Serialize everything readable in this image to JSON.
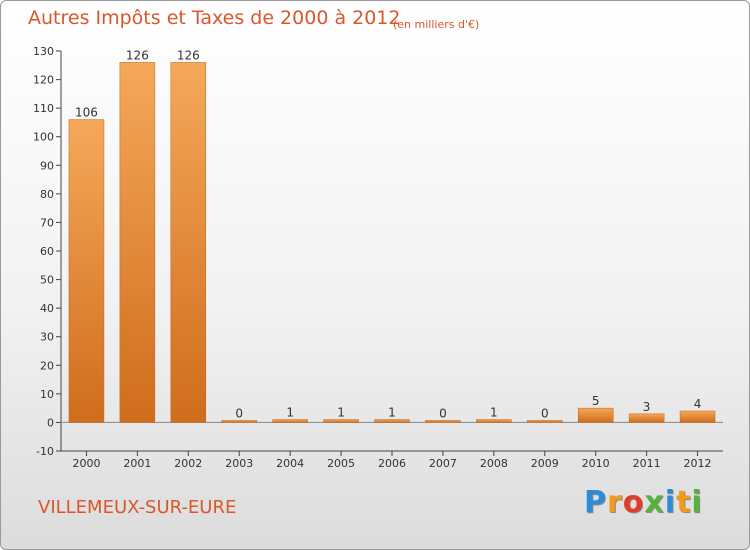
{
  "title": "Autres Impôts et Taxes de 2000 à 2012",
  "subtitle": "(en milliers d'€)",
  "commune": "VILLEMEUX-SUR-EURE",
  "logo": {
    "letters": [
      "P",
      "r",
      "o",
      "x",
      "i",
      "t",
      "i"
    ],
    "colors": [
      "#2e8bd6",
      "#f29a1c",
      "#e23b2a",
      "#55b33b",
      "#2e8bd6",
      "#f29a1c",
      "#55b33b"
    ]
  },
  "colors": {
    "bar": "#e8832b",
    "bar_light": "#f5a85a",
    "text": "#d9572a",
    "axis": "#444444"
  },
  "chart_data": {
    "type": "bar",
    "categories": [
      "2000",
      "2001",
      "2002",
      "2003",
      "2004",
      "2005",
      "2006",
      "2007",
      "2008",
      "2009",
      "2010",
      "2011",
      "2012"
    ],
    "values": [
      106,
      126,
      126,
      0,
      1,
      1,
      1,
      0,
      1,
      0,
      5,
      3,
      4
    ],
    "data_labels": [
      "106",
      "126",
      "126",
      "0",
      "1",
      "1",
      "1",
      "0",
      "1",
      "0",
      "5",
      "3",
      "4"
    ],
    "ylim": [
      -10,
      130
    ],
    "yticks": [
      -10,
      0,
      10,
      20,
      30,
      40,
      50,
      60,
      70,
      80,
      90,
      100,
      110,
      120,
      130
    ],
    "grid": false,
    "legend": "none"
  }
}
